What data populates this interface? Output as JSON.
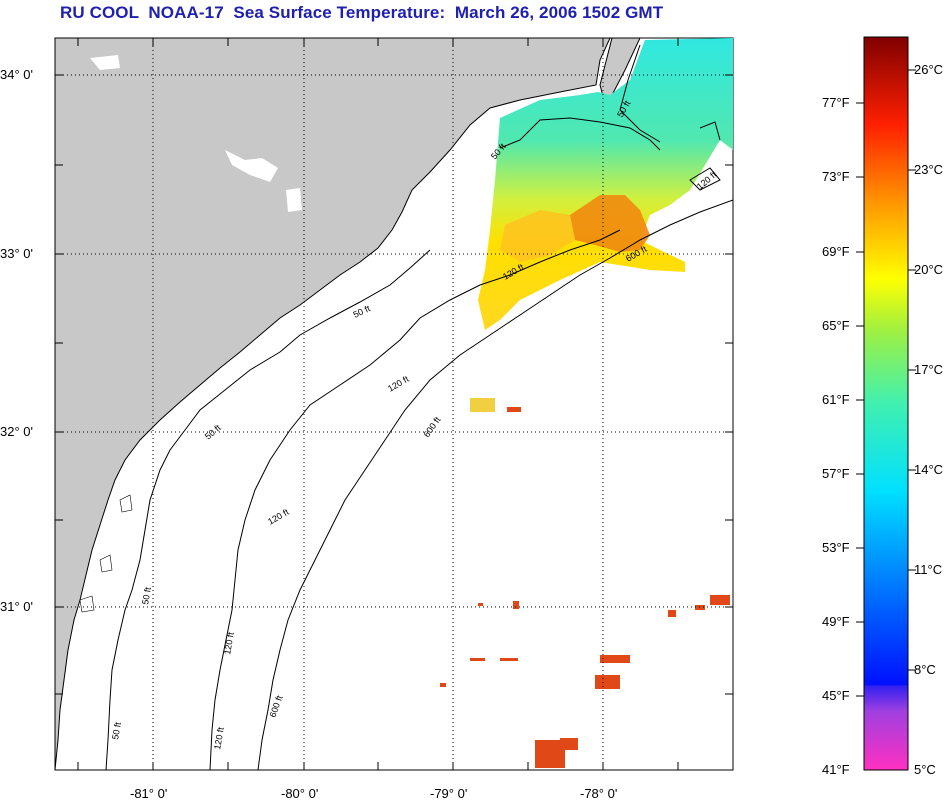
{
  "title": "RU COOL  NOAA-17  Sea Surface Temperature:  March 26, 2006 1502 GMT",
  "lat_labels": [
    "34° 0'",
    "33° 0'",
    "32° 0'",
    "31° 0'"
  ],
  "lon_labels": [
    "-81° 0'",
    "-80° 0'",
    "-79° 0'",
    "-78° 0'"
  ],
  "contours": [
    "50 ft",
    "120 ft",
    "600 ft"
  ],
  "colorbar": {
    "fahrenheit": [
      "77°F",
      "73°F",
      "69°F",
      "65°F",
      "61°F",
      "57°F",
      "53°F",
      "49°F",
      "45°F",
      "41°F"
    ],
    "celsius": [
      "26°C",
      "23°C",
      "20°C",
      "17°C",
      "14°C",
      "11°C",
      "8°C",
      "5°C"
    ]
  },
  "colors": {
    "land": "#c8c8c8",
    "title": "#2020b0",
    "warm": "#e85a10",
    "cold": "#30e0f0"
  }
}
